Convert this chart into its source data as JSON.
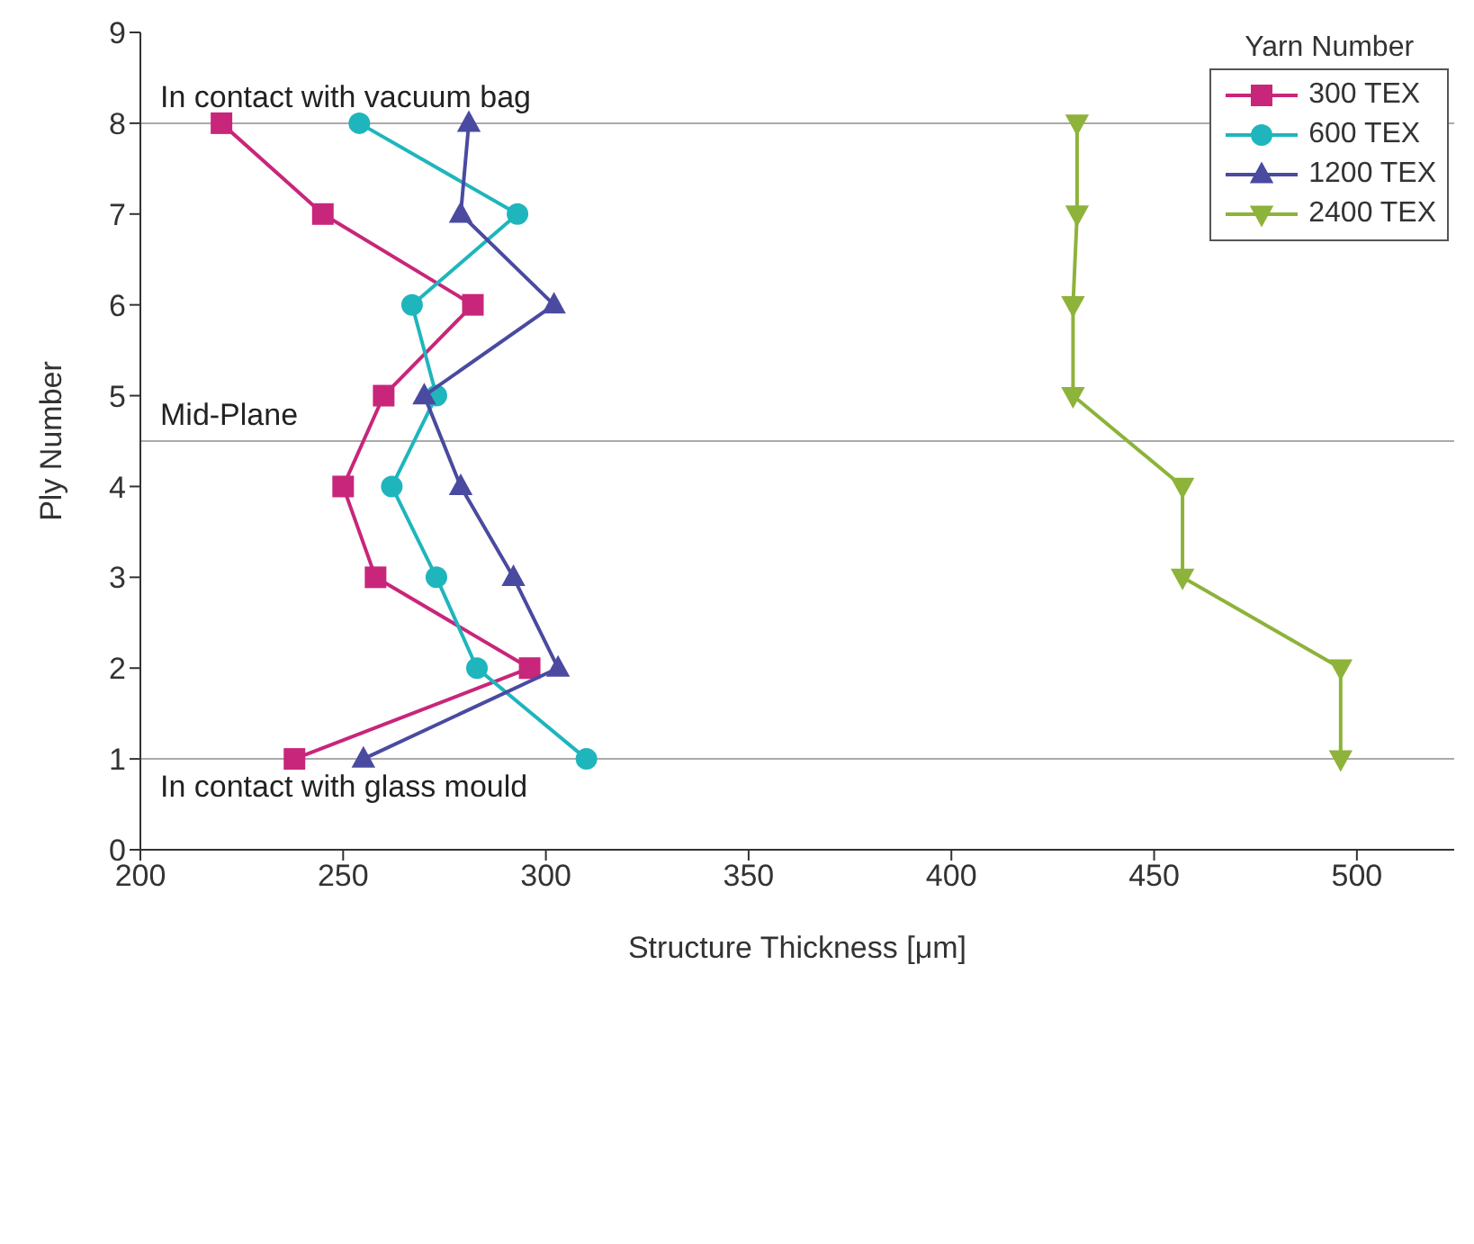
{
  "chart_data": {
    "type": "line",
    "xlabel": "Structure Thickness [μm]",
    "ylabel": "Ply Number",
    "legend_title": "Yarn Number",
    "xlim": [
      200,
      524
    ],
    "xticks": [
      200,
      250,
      300,
      350,
      400,
      450,
      500
    ],
    "ylim": [
      0,
      9
    ],
    "yticks": [
      0,
      1,
      2,
      3,
      4,
      5,
      6,
      7,
      8,
      9
    ],
    "grid": false,
    "legend": "top right",
    "line_style": "solid",
    "ref_lines": [
      {
        "axis": "y",
        "value": 8,
        "label": "In contact with vacuum bag",
        "color": "#aaaaaa"
      },
      {
        "axis": "y",
        "value": 4.5,
        "label": "Mid-Plane",
        "color": "#aaaaaa"
      },
      {
        "axis": "y",
        "value": 1,
        "label": "In contact with glass mould",
        "color": "#aaaaaa"
      }
    ],
    "series": [
      {
        "name": "300 TEX",
        "color": "#c8267a",
        "marker": "square",
        "x": [
          220,
          245,
          282,
          260,
          250,
          258,
          296,
          238
        ],
        "values": [
          8,
          7,
          6,
          5,
          4,
          3,
          2,
          1
        ]
      },
      {
        "name": "600 TEX",
        "color": "#1fb5bd",
        "marker": "circle",
        "x": [
          254,
          293,
          267,
          273,
          262,
          273,
          283,
          310
        ],
        "values": [
          8,
          7,
          6,
          5,
          4,
          3,
          2,
          1
        ]
      },
      {
        "name": "1200 TEX",
        "color": "#4a4aa0",
        "marker": "triangle",
        "x": [
          281,
          279,
          302,
          270,
          279,
          292,
          303,
          255
        ],
        "values": [
          8,
          7,
          6,
          5,
          4,
          3,
          2,
          1
        ]
      },
      {
        "name": "2400 TEX",
        "color": "#8db33a",
        "marker": "triangle-down",
        "x": [
          431,
          431,
          430,
          430,
          457,
          457,
          496,
          496
        ],
        "values": [
          8,
          7,
          6,
          5,
          4,
          3,
          2,
          1
        ]
      }
    ]
  }
}
